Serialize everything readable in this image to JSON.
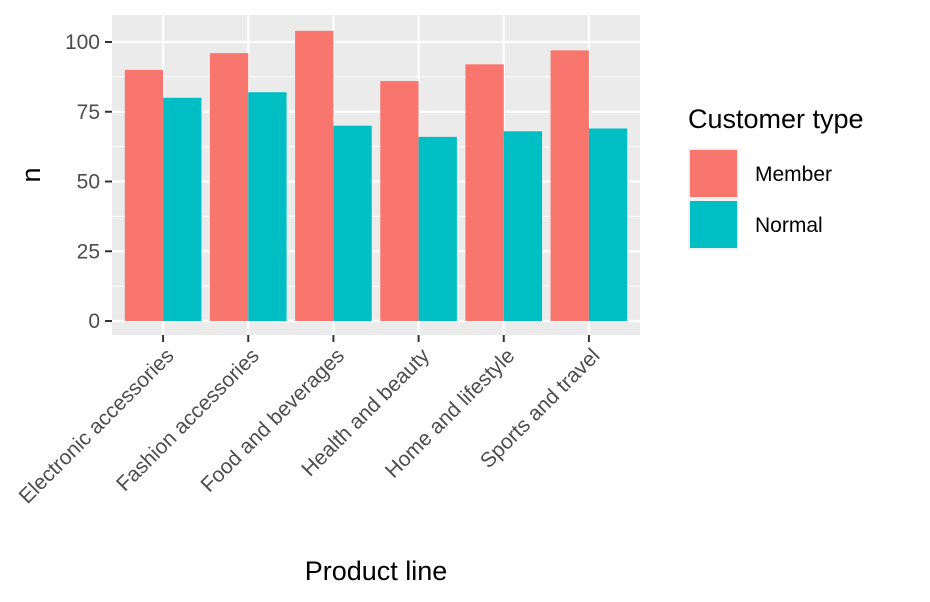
{
  "chart_data": {
    "type": "bar",
    "title": "",
    "xlabel": "Product line",
    "ylabel": "n",
    "categories": [
      "Electronic accessories",
      "Fashion accessories",
      "Food and beverages",
      "Health and beauty",
      "Home and lifestyle",
      "Sports and travel"
    ],
    "series": [
      {
        "name": "Member",
        "color": "#F8766D",
        "values": [
          90,
          96,
          104,
          86,
          92,
          97
        ]
      },
      {
        "name": "Normal",
        "color": "#00BFC4",
        "values": [
          80,
          82,
          70,
          66,
          68,
          69
        ]
      }
    ],
    "ylim": [
      0,
      110
    ],
    "yticks": [
      0,
      25,
      50,
      75,
      100
    ],
    "legend": {
      "title": "Customer type",
      "position": "right"
    },
    "grid": true,
    "panel_color": "#EBEBEB"
  }
}
